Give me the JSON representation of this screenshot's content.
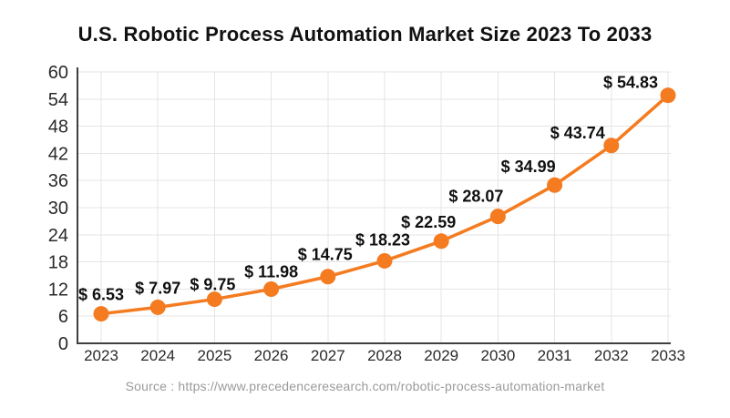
{
  "page": {
    "source": "Source : https://www.precedenceresearch.com/robotic-process-automation-market"
  },
  "chart_data": {
    "type": "line",
    "title": "U.S. Robotic Process Automation Market Size 2023 To 2033",
    "categories": [
      "2023",
      "2024",
      "2025",
      "2026",
      "2027",
      "2028",
      "2029",
      "2030",
      "2031",
      "2032",
      "2033"
    ],
    "values": [
      6.53,
      7.97,
      9.75,
      11.98,
      14.75,
      18.23,
      22.59,
      28.07,
      34.99,
      43.74,
      54.83
    ],
    "point_labels": [
      "$ 6.53",
      "$ 7.97",
      "$ 9.75",
      "$ 11.98",
      "$ 14.75",
      "$ 18.23",
      "$ 22.59",
      "$ 28.07",
      "$ 34.99",
      "$ 43.74",
      "$ 54.83"
    ],
    "xlabel": "",
    "ylabel": "",
    "ylim": [
      0,
      60
    ],
    "ytick_step": 6,
    "yticks": [
      0,
      6,
      12,
      18,
      24,
      30,
      36,
      42,
      48,
      54,
      60
    ],
    "grid": true,
    "legend_position": "none",
    "colors": {
      "line": "#F47B20",
      "marker": "#F47B20",
      "grid": "#E4E4E4",
      "axis": "#3F3F3F",
      "tick_text": "#2A2A2A",
      "point_label_text": "#101010",
      "title_text": "#111111",
      "source_text": "#9A9A9A"
    },
    "source": "Source : https://www.precedenceresearch.com/robotic-process-automation-market"
  }
}
